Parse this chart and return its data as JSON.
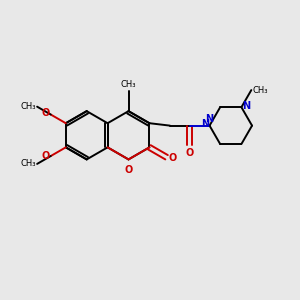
{
  "background_color": "#e8e8e8",
  "bond_color": "#000000",
  "oxygen_color": "#cc0000",
  "nitrogen_color": "#0000cc",
  "figsize": [
    3.0,
    3.0
  ],
  "dpi": 100,
  "xlim": [
    0,
    10
  ],
  "ylim": [
    0,
    10
  ]
}
